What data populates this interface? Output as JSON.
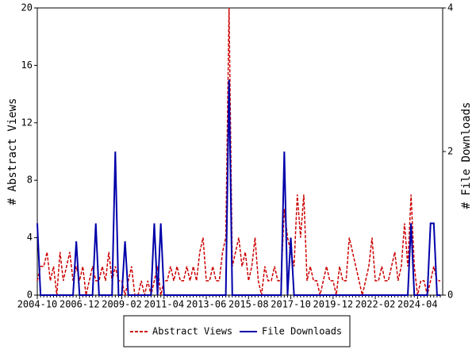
{
  "chart_data": {
    "type": "line",
    "categories": [
      "2004-10",
      null,
      null,
      null,
      null,
      null,
      null,
      null,
      null,
      null,
      null,
      null,
      null,
      "2006-12",
      null,
      null,
      null,
      null,
      null,
      null,
      null,
      null,
      null,
      null,
      null,
      null,
      "2009-02",
      null,
      null,
      null,
      null,
      null,
      null,
      null,
      null,
      null,
      null,
      null,
      null,
      "2011-04",
      null,
      null,
      null,
      null,
      null,
      null,
      null,
      null,
      null,
      null,
      null,
      null,
      "2013-06",
      null,
      null,
      null,
      null,
      null,
      null,
      null,
      null,
      null,
      null,
      null,
      null,
      "2015-08",
      null,
      null,
      null,
      null,
      null,
      null,
      null,
      null,
      null,
      null,
      null,
      null,
      "2017-10",
      null,
      null,
      null,
      null,
      null,
      null,
      null,
      null,
      null,
      null,
      null,
      null,
      "2019-12",
      null,
      null,
      null,
      null,
      null,
      null,
      null,
      null,
      null,
      null,
      null,
      null,
      "2022-02",
      null,
      null,
      null,
      null,
      null,
      null,
      null,
      null,
      null,
      null,
      null,
      null,
      "2024-04",
      null,
      null,
      null,
      null,
      null,
      null,
      null
    ],
    "series": [
      {
        "name": "Abstract Views",
        "color": "#cc0000",
        "dash": true,
        "values": [
          1,
          2,
          2,
          3,
          1,
          2,
          0,
          3,
          1,
          2,
          3,
          1,
          2,
          1,
          2,
          0,
          1,
          2,
          1,
          1,
          2,
          1,
          3,
          1,
          2,
          1,
          1,
          0,
          1,
          2,
          0,
          0,
          1,
          0,
          1,
          0,
          1,
          2,
          0,
          1,
          1,
          2,
          1,
          2,
          1,
          1,
          2,
          1,
          2,
          1,
          3,
          4,
          1,
          1,
          2,
          1,
          1,
          3,
          4,
          20,
          2,
          3,
          4,
          2,
          3,
          1,
          2,
          4,
          1,
          0,
          2,
          1,
          1,
          2,
          1,
          1,
          6,
          4,
          3,
          2,
          7,
          4,
          7,
          1,
          2,
          1,
          1,
          0,
          1,
          2,
          1,
          1,
          0,
          2,
          1,
          1,
          4,
          3,
          2,
          1,
          0,
          1,
          2,
          4,
          1,
          1,
          2,
          1,
          1,
          2,
          3,
          1,
          2,
          5,
          2,
          7,
          2,
          0,
          1,
          1,
          0,
          1,
          2,
          1,
          1
        ]
      },
      {
        "name": "File Downloads",
        "color": "#0000aa",
        "axis": "y2",
        "values": [
          1,
          0,
          0,
          0,
          0,
          0,
          0,
          0,
          0,
          0,
          0,
          0,
          0.75,
          0,
          0,
          0,
          0,
          0,
          1,
          0,
          0,
          0,
          0,
          0,
          2,
          0,
          0,
          0.75,
          0,
          0,
          0,
          0,
          0,
          0,
          0,
          0,
          1,
          0,
          1,
          0,
          0,
          0,
          0,
          0,
          0,
          0,
          0,
          0,
          0,
          0,
          0,
          0,
          0,
          0,
          0,
          0,
          0,
          0,
          0,
          3,
          0,
          0,
          0,
          0,
          0,
          0,
          0,
          0,
          0,
          0,
          0,
          0,
          0,
          0,
          0,
          0,
          2,
          0,
          0.8,
          0,
          0,
          0,
          0,
          0,
          0,
          0,
          0,
          0,
          0,
          0,
          0,
          0,
          0,
          0,
          0,
          0,
          0,
          0,
          0,
          0,
          0,
          0,
          0,
          0,
          0,
          0,
          0,
          0,
          0,
          0,
          0,
          0,
          0,
          0,
          0,
          1,
          0,
          0,
          0,
          0,
          0,
          1,
          1,
          0,
          0
        ]
      }
    ],
    "ylabel": "# Abstract Views",
    "y2label": "# File Downloads",
    "ylim": [
      0,
      20
    ],
    "yticks": [
      0,
      4,
      8,
      12,
      16,
      20
    ],
    "y2lim": [
      0,
      4
    ],
    "y2ticks": [
      0,
      2,
      4
    ]
  }
}
